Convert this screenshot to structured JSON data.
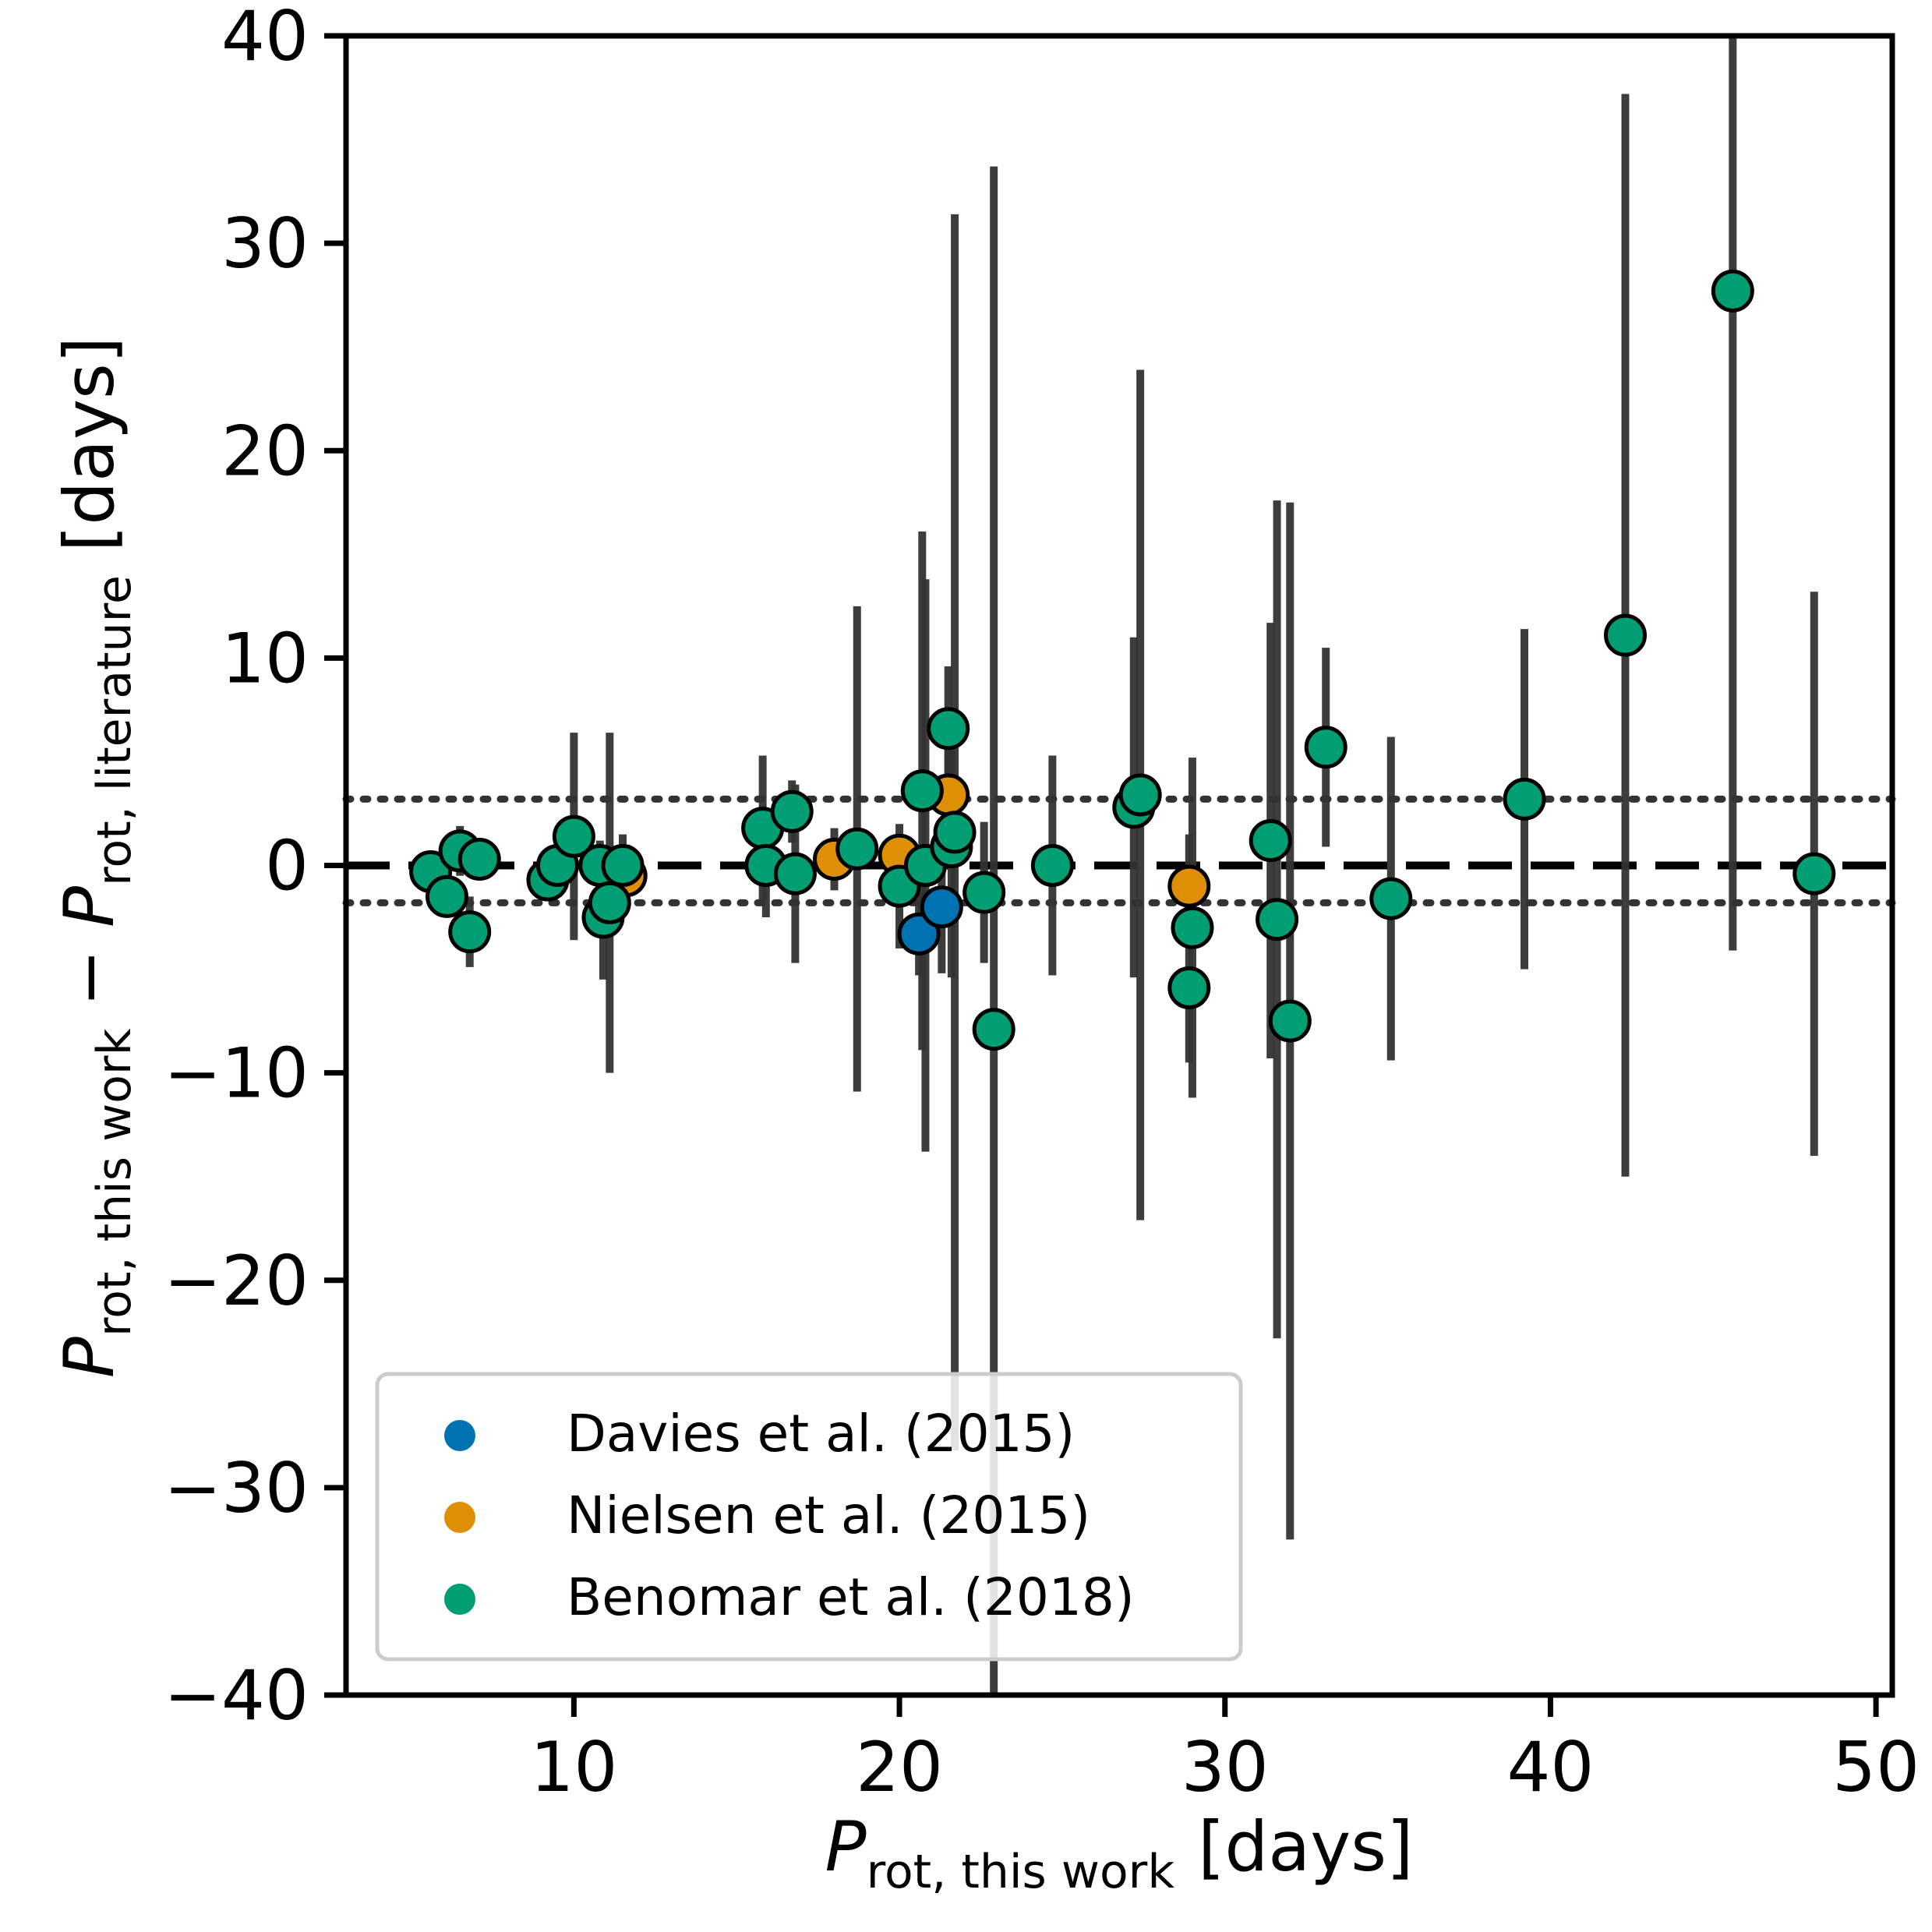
{
  "chart_data": {
    "type": "scatter",
    "xlabel": {
      "main": "P",
      "sub": "rot, this work",
      "rest": "[days]"
    },
    "ylabel": {
      "p1": "P",
      "sub1": "rot, this work",
      "minus": " − ",
      "p2": "P",
      "sub2": "rot,  literature",
      "rest": "[days]"
    },
    "xlim": [
      3,
      50.5
    ],
    "ylim": [
      -40,
      40
    ],
    "xticks": [
      10,
      20,
      30,
      40,
      50
    ],
    "yticks": [
      -40,
      -30,
      -20,
      -10,
      0,
      10,
      20,
      30,
      40
    ],
    "xtick_labels": [
      "10",
      "20",
      "30",
      "40",
      "50"
    ],
    "ytick_labels": [
      "−40",
      "−30",
      "−20",
      "−10",
      "0",
      "10",
      "20",
      "30",
      "40"
    ],
    "reference_lines": [
      {
        "y": 0,
        "style": "dashed"
      },
      {
        "y": 3.2,
        "style": "dotted"
      },
      {
        "y": -1.8,
        "style": "dotted"
      }
    ],
    "legend_position": "lower-left",
    "series": [
      {
        "name": "Davies et al. (2015)",
        "color": "#0072b2",
        "points": [
          {
            "x": 20.6,
            "y": -3.3,
            "err": 2.0
          },
          {
            "x": 21.3,
            "y": -2.0,
            "err": 3.2
          }
        ]
      },
      {
        "name": "Nielsen et al. (2015)",
        "color": "#de8f05",
        "points": [
          {
            "x": 11.6,
            "y": -0.5,
            "err": 1.5
          },
          {
            "x": 18.0,
            "y": 0.3,
            "err": 1.5
          },
          {
            "x": 20.0,
            "y": 0.5,
            "err": 1.0
          },
          {
            "x": 21.5,
            "y": 3.4,
            "err": 2.8
          },
          {
            "x": 28.9,
            "y": -1.0,
            "err": 2.5
          }
        ]
      },
      {
        "name": "Benomar et al. (2018)",
        "color": "#029e73",
        "points": [
          {
            "x": 5.6,
            "y": -0.3,
            "err": 1.0
          },
          {
            "x": 6.1,
            "y": -1.5,
            "err": 1.0
          },
          {
            "x": 6.5,
            "y": 0.7,
            "err": 1.2
          },
          {
            "x": 6.8,
            "y": -3.2,
            "err": 1.7
          },
          {
            "x": 7.1,
            "y": 0.3,
            "err": 0.8
          },
          {
            "x": 9.2,
            "y": -0.7,
            "err": 1.0
          },
          {
            "x": 9.5,
            "y": 0.0,
            "err": 1.0
          },
          {
            "x": 10.0,
            "y": 1.4,
            "err": 5.0
          },
          {
            "x": 10.8,
            "y": 0.0,
            "err": 1.2
          },
          {
            "x": 10.9,
            "y": -2.5,
            "err": 3.0
          },
          {
            "x": 11.1,
            "y": -1.8,
            "err": 8.2
          },
          {
            "x": 11.5,
            "y": 0.0,
            "err": 1.5
          },
          {
            "x": 15.8,
            "y": 1.8,
            "err": 3.5
          },
          {
            "x": 15.9,
            "y": 0.0,
            "err": 2.5
          },
          {
            "x": 16.7,
            "y": 2.6,
            "err": 1.5
          },
          {
            "x": 16.8,
            "y": -0.4,
            "err": 4.3
          },
          {
            "x": 18.7,
            "y": 0.8,
            "err": 11.7
          },
          {
            "x": 20.0,
            "y": -1.0,
            "err": 3.0
          },
          {
            "x": 20.7,
            "y": 3.6,
            "err": 12.5
          },
          {
            "x": 20.8,
            "y": 0.0,
            "err": 13.8
          },
          {
            "x": 21.5,
            "y": 6.6,
            "err": 3.0
          },
          {
            "x": 21.6,
            "y": 0.9,
            "err": 6.3
          },
          {
            "x": 21.7,
            "y": 1.6,
            "err": 29.8
          },
          {
            "x": 22.6,
            "y": -1.3,
            "err": 3.4
          },
          {
            "x": 22.9,
            "y": -7.9,
            "err": 41.6
          },
          {
            "x": 24.7,
            "y": 0.0,
            "err": 5.3
          },
          {
            "x": 27.2,
            "y": 2.8,
            "err": 8.2
          },
          {
            "x": 27.4,
            "y": 3.4,
            "err": 20.5
          },
          {
            "x": 28.9,
            "y": -5.9,
            "err": 3.6
          },
          {
            "x": 29.0,
            "y": -3.0,
            "err": 8.2
          },
          {
            "x": 31.4,
            "y": 1.2,
            "err": 10.5
          },
          {
            "x": 31.6,
            "y": -2.6,
            "err": 20.2
          },
          {
            "x": 32.0,
            "y": -7.5,
            "err": 25.0
          },
          {
            "x": 33.1,
            "y": 5.7,
            "err": 4.8
          },
          {
            "x": 35.1,
            "y": -1.6,
            "err": 7.8
          },
          {
            "x": 39.2,
            "y": 3.2,
            "err": 8.2
          },
          {
            "x": 42.3,
            "y": 11.1,
            "err": 26.1
          },
          {
            "x": 45.6,
            "y": 27.7,
            "err": 31.8
          },
          {
            "x": 48.1,
            "y": -0.4,
            "err": 13.6
          }
        ]
      }
    ]
  }
}
